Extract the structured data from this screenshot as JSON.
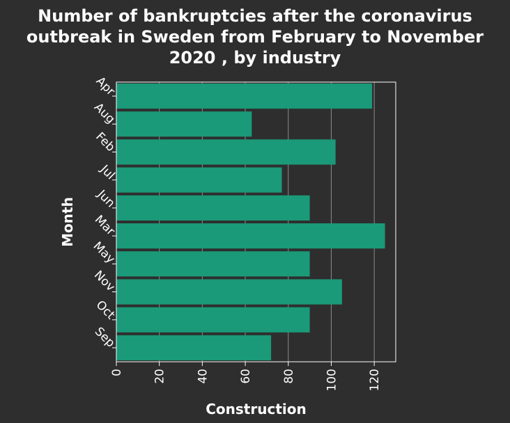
{
  "chart_data": {
    "type": "bar",
    "orientation": "horizontal",
    "title_lines": [
      "Number of bankruptcies after the coronavirus",
      "outbreak in Sweden from February to November",
      "2020 , by industry"
    ],
    "xlabel": "Construction",
    "ylabel": "Month",
    "categories": [
      "Apr",
      "Aug",
      "Feb",
      "Jul",
      "Jun",
      "Mar",
      "May",
      "Nov",
      "Oct",
      "Sep"
    ],
    "values": [
      119,
      63,
      102,
      77,
      90,
      125,
      90,
      105,
      90,
      72
    ],
    "xlim": [
      0,
      130
    ],
    "xticks": [
      0,
      20,
      40,
      60,
      80,
      100,
      120
    ],
    "grid": true,
    "bar_color": "#1a9a78",
    "background_color": "#2e2e2e",
    "plot_background_color": "#2e2e2e",
    "text_color": "#ffffff"
  }
}
